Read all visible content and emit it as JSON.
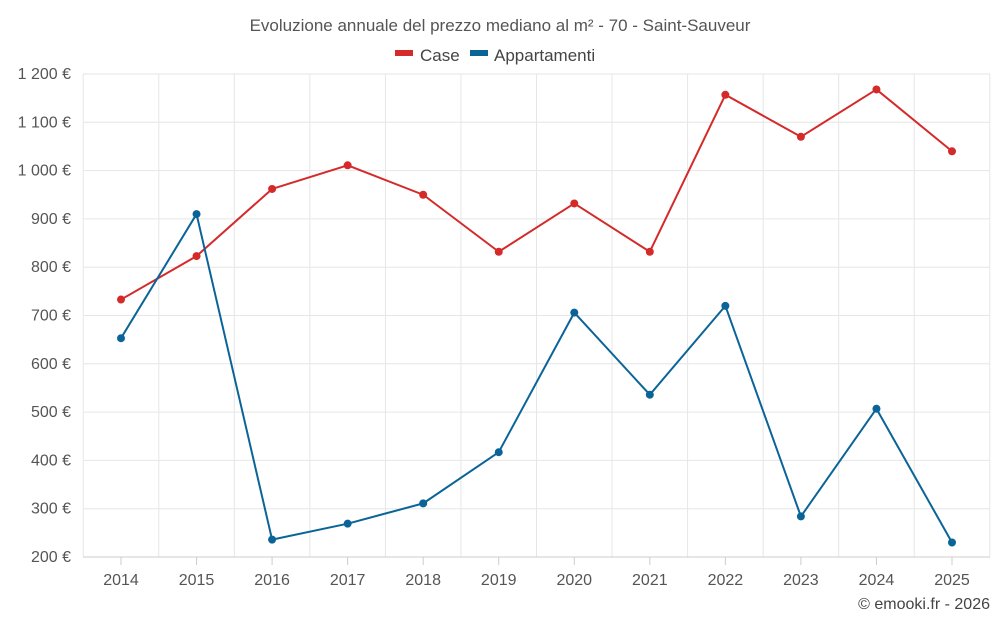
{
  "chart_data": {
    "type": "line",
    "title": "Evoluzione annuale del prezzo mediano al m² - 70 - Saint-Sauveur",
    "x": [
      "2014",
      "2015",
      "2016",
      "2017",
      "2018",
      "2019",
      "2020",
      "2021",
      "2022",
      "2023",
      "2024",
      "2025"
    ],
    "series": [
      {
        "name": "Case",
        "color": "#d42a2a",
        "values": [
          733,
          823,
          962,
          1011,
          950,
          832,
          932,
          832,
          1157,
          1070,
          1168,
          1040
        ]
      },
      {
        "name": "Appartamenti",
        "color": "#0b6498",
        "values": [
          653,
          910,
          236,
          269,
          311,
          417,
          706,
          536,
          720,
          284,
          507,
          230
        ]
      }
    ],
    "ylim": [
      200,
      1200
    ],
    "yticks": [
      200,
      300,
      400,
      500,
      600,
      700,
      800,
      900,
      1000,
      1100,
      1200
    ],
    "ytick_labels": [
      "200 €",
      "300 €",
      "400 €",
      "500 €",
      "600 €",
      "700 €",
      "800 €",
      "900 €",
      "1 000 €",
      "1 100 €",
      "1 200 €"
    ],
    "legend_position": "top-center",
    "grid": true
  },
  "credit": "© emooki.fr - 2026"
}
